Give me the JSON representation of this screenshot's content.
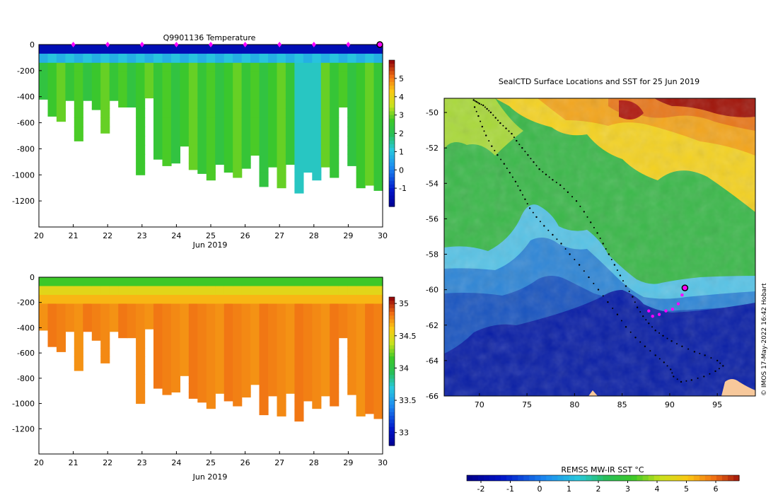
{
  "panels": {
    "temperature": {
      "title": "Q9901136  Temperature",
      "x_ticks": [
        "20",
        "21",
        "22",
        "23",
        "24",
        "25",
        "26",
        "27",
        "28",
        "29",
        "30"
      ],
      "x_label": "Jun 2019",
      "y_ticks": [
        "0",
        "-200",
        "-400",
        "-600",
        "-800",
        "-1000",
        "-1200"
      ],
      "colorbar_ticks": [
        "5",
        "4",
        "3",
        "2",
        "1",
        "0",
        "-1"
      ]
    },
    "salinity": {
      "title": "",
      "x_ticks": [
        "20",
        "21",
        "22",
        "23",
        "24",
        "25",
        "26",
        "27",
        "28",
        "29",
        "30"
      ],
      "x_label": "Jun 2019",
      "y_ticks": [
        "0",
        "-200",
        "-400",
        "-600",
        "-800",
        "-1000",
        "-1200"
      ],
      "colorbar_ticks": [
        "35",
        "34.5",
        "34",
        "33.5",
        "33"
      ]
    },
    "map": {
      "title": "SealCTD Surface Locations and SST for 25 Jun 2019",
      "lon_ticks": [
        "70",
        "75",
        "80",
        "85",
        "90",
        "95"
      ],
      "lat_ticks": [
        "-50",
        "-52",
        "-54",
        "-56",
        "-58",
        "-60",
        "-62",
        "-64",
        "-66"
      ],
      "colorbar_title": "REMSS MW-IR SST °C",
      "colorbar_ticks": [
        "-2",
        "-1",
        "0",
        "1",
        "2",
        "3",
        "4",
        "5",
        "6"
      ],
      "credit": "© IMOS 17-May-2022 16:42 Hobart"
    }
  },
  "colors": {
    "marker": "#ff00ff",
    "land": "#f7c89b",
    "track": "#000000"
  },
  "chart_data": [
    {
      "type": "heatmap",
      "title": "Q9901136  Temperature",
      "x": [
        "20",
        "21",
        "22",
        "23",
        "24",
        "25",
        "26",
        "27",
        "28",
        "29",
        "30"
      ],
      "xlabel": "Jun 2019",
      "ylim": [
        -1400,
        0
      ],
      "colorbar_range": [
        -2,
        6
      ],
      "profile_bottom_depths_m": [
        -420,
        -550,
        -590,
        -430,
        -740,
        -430,
        -500,
        -680,
        -430,
        -480,
        -480,
        -1000,
        -410,
        -880,
        -930,
        -910,
        -780,
        -960,
        -990,
        -1040,
        -920,
        -980,
        -1020,
        -950,
        -850,
        -1090,
        -940,
        -1100,
        -920,
        -1140,
        -980,
        -1040,
        -940,
        -1020,
        -480,
        -930,
        -1100,
        -1080,
        -1120
      ],
      "marker_days": [
        21,
        22,
        23,
        24,
        25,
        26,
        27,
        28,
        29,
        30
      ]
    },
    {
      "type": "heatmap",
      "title": "",
      "x": [
        "20",
        "21",
        "22",
        "23",
        "24",
        "25",
        "26",
        "27",
        "28",
        "29",
        "30"
      ],
      "xlabel": "Jun 2019",
      "ylim": [
        -1400,
        0
      ],
      "colorbar_range": [
        32.8,
        35.1
      ],
      "profile_bottom_depths_m": [
        -420,
        -550,
        -590,
        -430,
        -740,
        -430,
        -500,
        -680,
        -430,
        -480,
        -480,
        -1000,
        -410,
        -880,
        -930,
        -910,
        -780,
        -960,
        -990,
        -1040,
        -920,
        -980,
        -1020,
        -950,
        -850,
        -1090,
        -940,
        -1100,
        -920,
        -1140,
        -980,
        -1040,
        -940,
        -1020,
        -480,
        -930,
        -1100,
        -1080,
        -1120
      ]
    },
    {
      "type": "scatter",
      "title": "SealCTD Surface Locations and SST for 25 Jun 2019",
      "xlim": [
        66.3,
        99
      ],
      "ylim": [
        -66,
        -49.2
      ],
      "track_lon": [
        69.5,
        69.9,
        70.3,
        70.7,
        71.3,
        71.9,
        72.6,
        73.2,
        73.8,
        74.3,
        74.8,
        75.3,
        76.0,
        76.8,
        77.7,
        78.6,
        79.5,
        80.5,
        81.5,
        82.5,
        83.5,
        84.5,
        85.4,
        86.4,
        87.4,
        88.5,
        89.4,
        90.1,
        90.4,
        91.2,
        92.3,
        93.6,
        94.8,
        95.6,
        95.0,
        93.7,
        92.6,
        91.3,
        90.2,
        89.3,
        88.5,
        87.8,
        87.2,
        86.6,
        86.1,
        85.4,
        84.8,
        84.2,
        83.6,
        83.0,
        82.4,
        81.7,
        81.0,
        80.2,
        79.3,
        78.5,
        77.7,
        77.0,
        76.3,
        75.7,
        75.1,
        74.5,
        73.9,
        73.4,
        72.8,
        72.2,
        71.7,
        71.2,
        70.8,
        70.4,
        70.0,
        69.7,
        69.4
      ],
      "track_lat": [
        -49.7,
        -50.2,
        -50.8,
        -51.3,
        -51.9,
        -52.4,
        -52.9,
        -53.4,
        -53.9,
        -54.4,
        -54.9,
        -55.4,
        -55.9,
        -56.4,
        -56.9,
        -57.4,
        -58.0,
        -58.6,
        -59.3,
        -60.0,
        -60.7,
        -61.4,
        -62.1,
        -62.7,
        -63.2,
        -63.7,
        -64.1,
        -64.5,
        -64.9,
        -65.2,
        -65.1,
        -64.9,
        -64.6,
        -64.3,
        -64.0,
        -63.7,
        -63.5,
        -63.2,
        -62.9,
        -62.6,
        -62.3,
        -61.9,
        -61.5,
        -61.0,
        -60.4,
        -59.8,
        -59.2,
        -58.6,
        -58.0,
        -57.4,
        -56.8,
        -56.2,
        -55.6,
        -55.0,
        -54.5,
        -54.1,
        -53.8,
        -53.5,
        -53.2,
        -52.8,
        -52.4,
        -52.0,
        -51.6,
        -51.2,
        -50.9,
        -50.6,
        -50.3,
        -50.0,
        -49.8,
        -49.6,
        -49.5,
        -49.4,
        -49.3
      ],
      "highlight_lon": [
        87.8,
        88.2,
        88.9,
        89.6,
        90.3,
        90.9,
        91.3
      ],
      "highlight_lat": [
        -61.2,
        -61.5,
        -61.4,
        -61.2,
        -61.1,
        -60.8,
        -60.3
      ],
      "latest_position": [
        91.6,
        -59.9
      ]
    }
  ]
}
